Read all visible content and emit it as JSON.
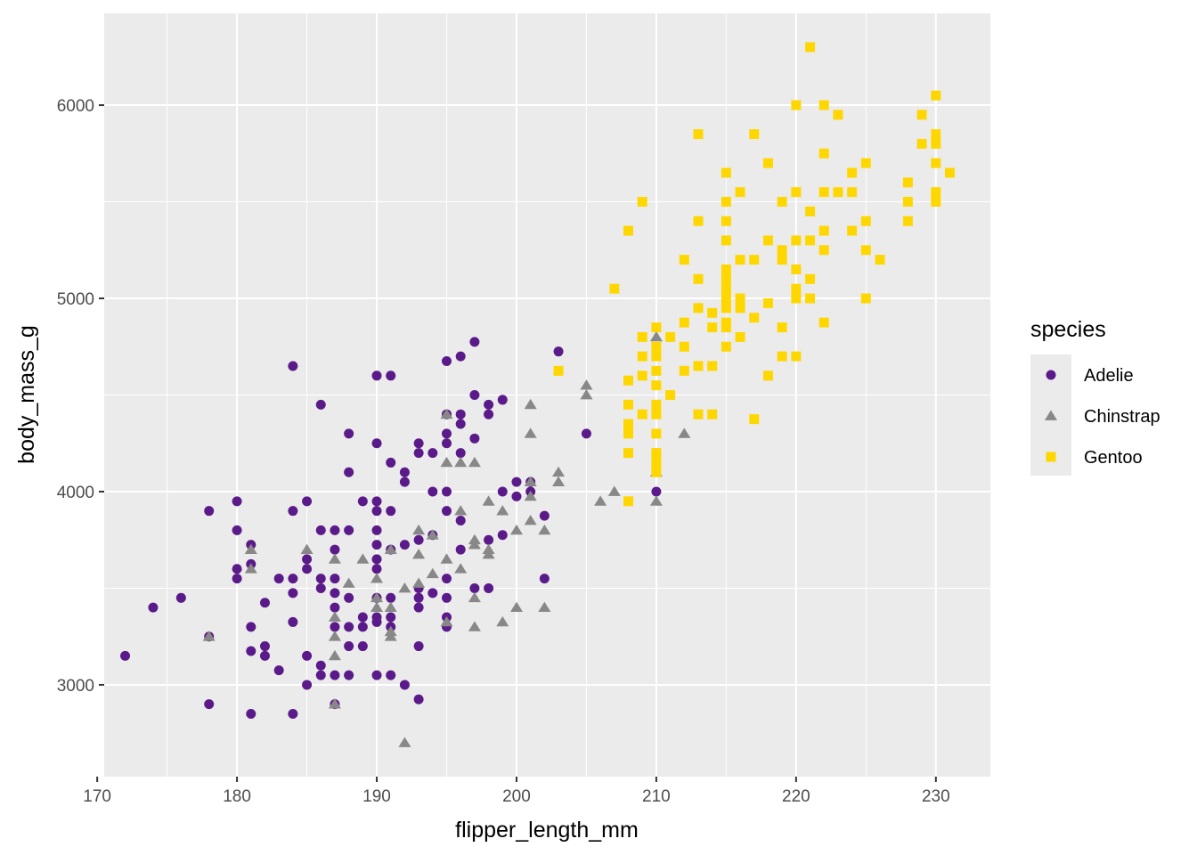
{
  "chart_data": {
    "type": "scatter",
    "xlabel": "flipper_length_mm",
    "ylabel": "body_mass_g",
    "xlim": [
      170.5,
      233.9
    ],
    "ylim": [
      2525,
      6475
    ],
    "x_ticks": [
      170,
      180,
      190,
      200,
      210,
      220,
      230
    ],
    "x_tick_labels": [
      "170",
      "180",
      "190",
      "200",
      "210",
      "220",
      "230"
    ],
    "y_ticks": [
      3000,
      4000,
      5000,
      6000
    ],
    "y_tick_labels": [
      "3000",
      "4000",
      "5000",
      "6000"
    ],
    "grid": true,
    "legend": {
      "title": "species",
      "placement": "right"
    },
    "series": [
      {
        "name": "Adelie",
        "color": "#5b1a8a",
        "shape": "circle",
        "points": [
          [
            172,
            3150
          ],
          [
            174,
            3400
          ],
          [
            176,
            3450
          ],
          [
            178,
            3900
          ],
          [
            178,
            2900
          ],
          [
            178,
            3250
          ],
          [
            180,
            3950
          ],
          [
            180,
            3800
          ],
          [
            180,
            3600
          ],
          [
            180,
            3550
          ],
          [
            181,
            3300
          ],
          [
            181,
            3175
          ],
          [
            181,
            3725
          ],
          [
            181,
            3625
          ],
          [
            181,
            2850
          ],
          [
            182,
            3425
          ],
          [
            182,
            3200
          ],
          [
            182,
            3150
          ],
          [
            183,
            3550
          ],
          [
            183,
            3075
          ],
          [
            184,
            3900
          ],
          [
            184,
            3550
          ],
          [
            184,
            3475
          ],
          [
            184,
            3325
          ],
          [
            184,
            2850
          ],
          [
            184,
            4650
          ],
          [
            185,
            3950
          ],
          [
            185,
            3650
          ],
          [
            185,
            3600
          ],
          [
            185,
            3150
          ],
          [
            185,
            3000
          ],
          [
            186,
            3800
          ],
          [
            186,
            3550
          ],
          [
            186,
            3500
          ],
          [
            186,
            3100
          ],
          [
            186,
            3050
          ],
          [
            186,
            4450
          ],
          [
            187,
            3800
          ],
          [
            187,
            3700
          ],
          [
            187,
            3550
          ],
          [
            187,
            3475
          ],
          [
            187,
            3400
          ],
          [
            187,
            3300
          ],
          [
            187,
            3050
          ],
          [
            187,
            2900
          ],
          [
            188,
            4300
          ],
          [
            188,
            4100
          ],
          [
            188,
            3800
          ],
          [
            188,
            3450
          ],
          [
            188,
            3300
          ],
          [
            188,
            3200
          ],
          [
            188,
            3050
          ],
          [
            189,
            3950
          ],
          [
            189,
            3350
          ],
          [
            189,
            3200
          ],
          [
            189,
            3300
          ],
          [
            190,
            4600
          ],
          [
            190,
            4250
          ],
          [
            190,
            3950
          ],
          [
            190,
            3900
          ],
          [
            190,
            3800
          ],
          [
            190,
            3725
          ],
          [
            190,
            3650
          ],
          [
            190,
            3600
          ],
          [
            190,
            3450
          ],
          [
            190,
            3350
          ],
          [
            190,
            3050
          ],
          [
            190,
            3325
          ],
          [
            191,
            4600
          ],
          [
            191,
            4150
          ],
          [
            191,
            3900
          ],
          [
            191,
            3700
          ],
          [
            191,
            3450
          ],
          [
            191,
            3350
          ],
          [
            191,
            3300
          ],
          [
            191,
            3050
          ],
          [
            192,
            3725
          ],
          [
            192,
            3000
          ],
          [
            192,
            4100
          ],
          [
            192,
            4050
          ],
          [
            193,
            4250
          ],
          [
            193,
            4200
          ],
          [
            193,
            3750
          ],
          [
            193,
            3500
          ],
          [
            193,
            3450
          ],
          [
            193,
            3400
          ],
          [
            193,
            3200
          ],
          [
            193,
            2925
          ],
          [
            194,
            4200
          ],
          [
            194,
            4000
          ],
          [
            194,
            3775
          ],
          [
            194,
            3475
          ],
          [
            195,
            4675
          ],
          [
            195,
            4400
          ],
          [
            195,
            4300
          ],
          [
            195,
            4250
          ],
          [
            195,
            4000
          ],
          [
            195,
            3900
          ],
          [
            195,
            3550
          ],
          [
            195,
            3450
          ],
          [
            195,
            3350
          ],
          [
            195,
            3300
          ],
          [
            196,
            4700
          ],
          [
            196,
            4400
          ],
          [
            196,
            4350
          ],
          [
            196,
            4200
          ],
          [
            196,
            3850
          ],
          [
            196,
            3700
          ],
          [
            197,
            4775
          ],
          [
            197,
            4500
          ],
          [
            197,
            4275
          ],
          [
            197,
            3500
          ],
          [
            198,
            4450
          ],
          [
            198,
            4400
          ],
          [
            198,
            3750
          ],
          [
            198,
            3500
          ],
          [
            199,
            4475
          ],
          [
            199,
            4000
          ],
          [
            199,
            3775
          ],
          [
            200,
            4050
          ],
          [
            200,
            3975
          ],
          [
            201,
            4000
          ],
          [
            201,
            4050
          ],
          [
            202,
            3875
          ],
          [
            202,
            3550
          ],
          [
            203,
            4725
          ],
          [
            205,
            4300
          ],
          [
            210,
            4000
          ]
        ]
      },
      {
        "name": "Chinstrap",
        "color": "#888888",
        "shape": "triangle",
        "points": [
          [
            178,
            3250
          ],
          [
            181,
            3700
          ],
          [
            181,
            3600
          ],
          [
            185,
            3700
          ],
          [
            187,
            3650
          ],
          [
            187,
            3350
          ],
          [
            187,
            3250
          ],
          [
            187,
            3150
          ],
          [
            187,
            2900
          ],
          [
            188,
            3525
          ],
          [
            189,
            3650
          ],
          [
            190,
            3550
          ],
          [
            190,
            3450
          ],
          [
            190,
            3400
          ],
          [
            191,
            3700
          ],
          [
            191,
            3400
          ],
          [
            191,
            3250
          ],
          [
            191,
            3275
          ],
          [
            192,
            2700
          ],
          [
            192,
            3500
          ],
          [
            193,
            3800
          ],
          [
            193,
            3675
          ],
          [
            193,
            3525
          ],
          [
            194,
            3775
          ],
          [
            194,
            3575
          ],
          [
            195,
            4400
          ],
          [
            195,
            4150
          ],
          [
            195,
            3650
          ],
          [
            195,
            3325
          ],
          [
            196,
            4150
          ],
          [
            196,
            3600
          ],
          [
            196,
            3900
          ],
          [
            197,
            4150
          ],
          [
            197,
            3450
          ],
          [
            197,
            3300
          ],
          [
            197,
            3750
          ],
          [
            197,
            3725
          ],
          [
            198,
            3950
          ],
          [
            198,
            3700
          ],
          [
            198,
            3675
          ],
          [
            199,
            3900
          ],
          [
            199,
            3325
          ],
          [
            200,
            3800
          ],
          [
            200,
            3400
          ],
          [
            201,
            4450
          ],
          [
            201,
            4300
          ],
          [
            201,
            4050
          ],
          [
            201,
            3975
          ],
          [
            201,
            3850
          ],
          [
            202,
            3800
          ],
          [
            202,
            3400
          ],
          [
            203,
            4100
          ],
          [
            203,
            4050
          ],
          [
            205,
            4550
          ],
          [
            205,
            4500
          ],
          [
            206,
            3950
          ],
          [
            207,
            4000
          ],
          [
            210,
            4800
          ],
          [
            210,
            4100
          ],
          [
            210,
            3950
          ],
          [
            212,
            4300
          ]
        ]
      },
      {
        "name": "Gentoo",
        "color": "#ffd700",
        "shape": "square",
        "points": [
          [
            203,
            4625
          ],
          [
            207,
            5050
          ],
          [
            208,
            5350
          ],
          [
            208,
            4575
          ],
          [
            208,
            4450
          ],
          [
            208,
            4350
          ],
          [
            208,
            4300
          ],
          [
            208,
            4200
          ],
          [
            208,
            3950
          ],
          [
            209,
            5500
          ],
          [
            209,
            4800
          ],
          [
            209,
            4700
          ],
          [
            209,
            4600
          ],
          [
            209,
            4400
          ],
          [
            210,
            4850
          ],
          [
            210,
            4750
          ],
          [
            210,
            4700
          ],
          [
            210,
            4625
          ],
          [
            210,
            4550
          ],
          [
            210,
            4450
          ],
          [
            210,
            4400
          ],
          [
            210,
            4300
          ],
          [
            210,
            4200
          ],
          [
            210,
            4150
          ],
          [
            210,
            4100
          ],
          [
            211,
            4800
          ],
          [
            211,
            4500
          ],
          [
            212,
            5200
          ],
          [
            212,
            4875
          ],
          [
            212,
            4750
          ],
          [
            212,
            4625
          ],
          [
            213,
            5850
          ],
          [
            213,
            5400
          ],
          [
            213,
            5100
          ],
          [
            213,
            4950
          ],
          [
            213,
            4650
          ],
          [
            213,
            4400
          ],
          [
            214,
            4925
          ],
          [
            214,
            4850
          ],
          [
            214,
            4650
          ],
          [
            214,
            4400
          ],
          [
            215,
            5650
          ],
          [
            215,
            5500
          ],
          [
            215,
            5400
          ],
          [
            215,
            5300
          ],
          [
            215,
            5150
          ],
          [
            215,
            5100
          ],
          [
            215,
            5050
          ],
          [
            215,
            5000
          ],
          [
            215,
            4950
          ],
          [
            215,
            4875
          ],
          [
            215,
            4850
          ],
          [
            215,
            4750
          ],
          [
            216,
            5550
          ],
          [
            216,
            5200
          ],
          [
            216,
            5000
          ],
          [
            216,
            4950
          ],
          [
            216,
            4800
          ],
          [
            217,
            5850
          ],
          [
            217,
            5200
          ],
          [
            217,
            4900
          ],
          [
            217,
            4375
          ],
          [
            218,
            5700
          ],
          [
            218,
            5300
          ],
          [
            218,
            4975
          ],
          [
            218,
            4600
          ],
          [
            219,
            5500
          ],
          [
            219,
            5250
          ],
          [
            219,
            5200
          ],
          [
            219,
            4850
          ],
          [
            219,
            4700
          ],
          [
            220,
            6000
          ],
          [
            220,
            5550
          ],
          [
            220,
            5300
          ],
          [
            220,
            5150
          ],
          [
            220,
            5050
          ],
          [
            220,
            5000
          ],
          [
            220,
            4700
          ],
          [
            221,
            6300
          ],
          [
            221,
            5450
          ],
          [
            221,
            5300
          ],
          [
            221,
            5100
          ],
          [
            221,
            5000
          ],
          [
            222,
            6000
          ],
          [
            222,
            5750
          ],
          [
            222,
            5550
          ],
          [
            222,
            5350
          ],
          [
            222,
            5250
          ],
          [
            222,
            4875
          ],
          [
            223,
            5950
          ],
          [
            223,
            5550
          ],
          [
            224,
            5650
          ],
          [
            224,
            5550
          ],
          [
            224,
            5350
          ],
          [
            225,
            5700
          ],
          [
            225,
            5400
          ],
          [
            225,
            5250
          ],
          [
            225,
            5000
          ],
          [
            226,
            5200
          ],
          [
            228,
            5600
          ],
          [
            228,
            5500
          ],
          [
            228,
            5400
          ],
          [
            229,
            5950
          ],
          [
            229,
            5800
          ],
          [
            230,
            6050
          ],
          [
            230,
            5850
          ],
          [
            230,
            5800
          ],
          [
            230,
            5700
          ],
          [
            230,
            5550
          ],
          [
            230,
            5500
          ],
          [
            231,
            5650
          ]
        ]
      }
    ]
  }
}
